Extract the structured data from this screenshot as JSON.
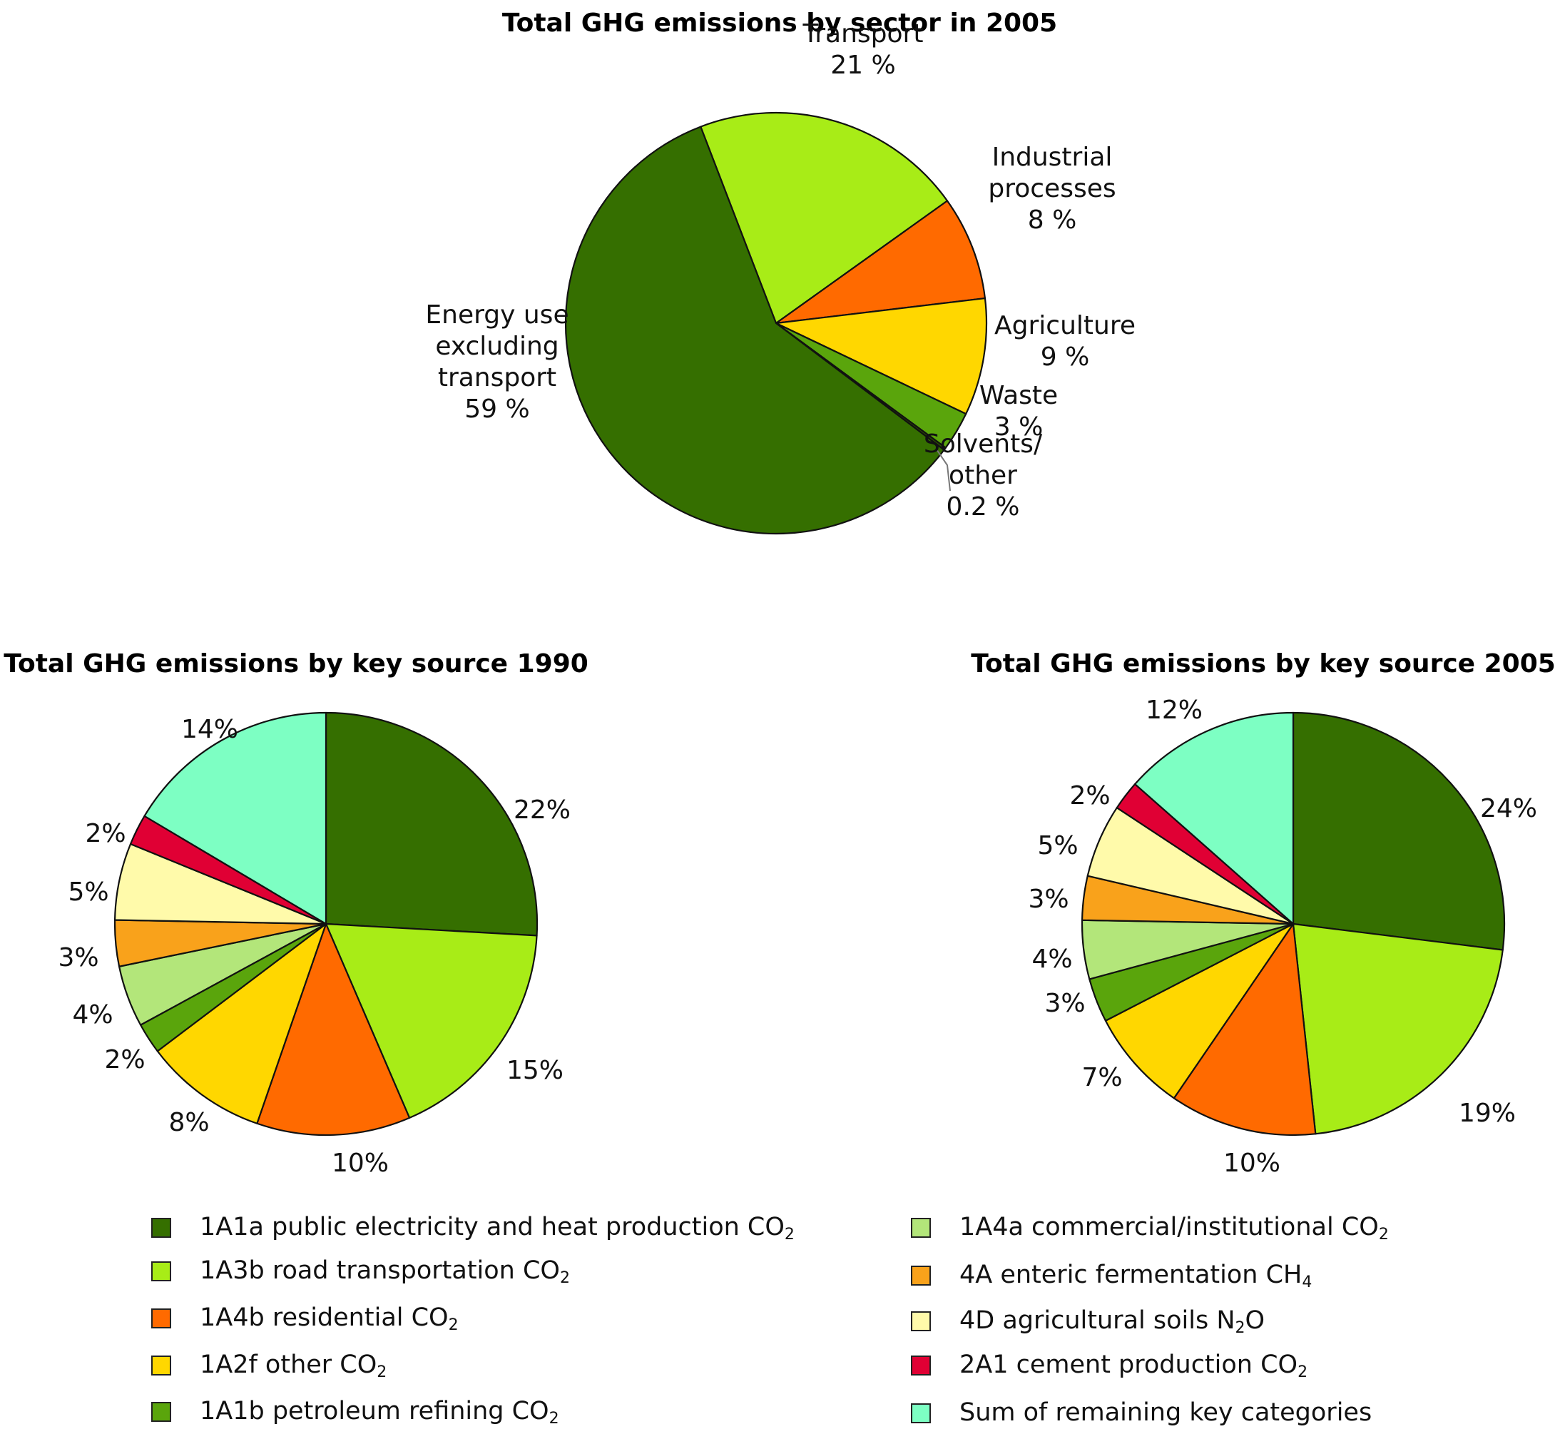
{
  "chart_data": [
    {
      "type": "pie",
      "title": "Total GHG emissions by sector in 2005",
      "slices": [
        {
          "label_lines": [
            "Transport",
            "21 %"
          ],
          "value": 21,
          "color": "#a8ec17"
        },
        {
          "label_lines": [
            "Industrial",
            "processes",
            "8 %"
          ],
          "value": 8,
          "color": "#ff6a00"
        },
        {
          "label_lines": [
            "Agriculture",
            "9 %"
          ],
          "value": 9,
          "color": "#ffd700"
        },
        {
          "label_lines": [
            "Waste",
            "3 %"
          ],
          "value": 3,
          "color": "#5aa50c"
        },
        {
          "label_lines": [
            "Solvents/",
            "other",
            "0.2 %"
          ],
          "value": 0.2,
          "color": "#2d5000"
        },
        {
          "label_lines": [
            "Energy use",
            "excluding",
            "transport",
            "59 %"
          ],
          "value": 59,
          "color": "#356f00"
        }
      ]
    },
    {
      "type": "pie",
      "title": "Total GHG emissions by key source 1990",
      "slices": [
        {
          "category": "1A1a public electricity and heat production CO2",
          "value": 22,
          "label": "22%"
        },
        {
          "category": "1A3b road transportation CO2",
          "value": 15,
          "label": "15%"
        },
        {
          "category": "1A4b residential CO2",
          "value": 10,
          "label": "10%"
        },
        {
          "category": "1A2f other CO2",
          "value": 8,
          "label": "8%"
        },
        {
          "category": "1A1b petroleum refining CO2",
          "value": 2,
          "label": "2%"
        },
        {
          "category": "1A4a commercial/institutional CO2",
          "value": 4,
          "label": "4%"
        },
        {
          "category": "4A enteric fermentation CH4",
          "value": 3,
          "label": "3%"
        },
        {
          "category": "4D agricultural soils N2O",
          "value": 5,
          "label": "5%"
        },
        {
          "category": "2A1 cement production CO2",
          "value": 2,
          "label": "2%"
        },
        {
          "category": "Sum of remaining key categories",
          "value": 14,
          "label": "14%"
        }
      ]
    },
    {
      "type": "pie",
      "title": "Total GHG emissions by key source 2005",
      "slices": [
        {
          "category": "1A1a public electricity and heat production CO2",
          "value": 24,
          "label": "24%"
        },
        {
          "category": "1A3b road transportation CO2",
          "value": 19,
          "label": "19%"
        },
        {
          "category": "1A4b residential CO2",
          "value": 10,
          "label": "10%"
        },
        {
          "category": "1A2f other CO2",
          "value": 7,
          "label": "7%"
        },
        {
          "category": "1A1b petroleum refining CO2",
          "value": 3,
          "label": "3%"
        },
        {
          "category": "1A4a commercial/institutional CO2",
          "value": 4,
          "label": "4%"
        },
        {
          "category": "4A enteric fermentation CH4",
          "value": 3,
          "label": "3%"
        },
        {
          "category": "4D agricultural soils N2O",
          "value": 5,
          "label": "5%"
        },
        {
          "category": "2A1 cement production CO2",
          "value": 2,
          "label": "2%"
        },
        {
          "category": "Sum of remaining key categories",
          "value": 12,
          "label": "12%"
        }
      ]
    }
  ],
  "legend": [
    {
      "pre": "1A1a public electricity and heat production CO",
      "sub": "2",
      "post": "",
      "color": "#356f00"
    },
    {
      "pre": "1A3b road transportation CO",
      "sub": "2",
      "post": "",
      "color": "#a8ec17"
    },
    {
      "pre": "1A4b residential CO",
      "sub": "2",
      "post": "",
      "color": "#ff6a00"
    },
    {
      "pre": "1A2f other CO",
      "sub": "2",
      "post": "",
      "color": "#ffd700"
    },
    {
      "pre": "1A1b petroleum refining CO",
      "sub": "2",
      "post": "",
      "color": "#5aa50c"
    },
    {
      "pre": "1A4a commercial/institutional CO",
      "sub": "2",
      "post": "",
      "color": "#b3e67a"
    },
    {
      "pre": "4A enteric fermentation CH",
      "sub": "4",
      "post": "",
      "color": "#f9a21b"
    },
    {
      "pre": "4D agricultural soils N",
      "sub": "2",
      "post": "O",
      "color": "#fffaaa"
    },
    {
      "pre": "2A1 cement production CO",
      "sub": "2",
      "post": "",
      "color": "#e00034"
    },
    {
      "pre": "Sum of remaining key categories",
      "sub": "",
      "post": "",
      "color": "#7dffc3"
    }
  ]
}
